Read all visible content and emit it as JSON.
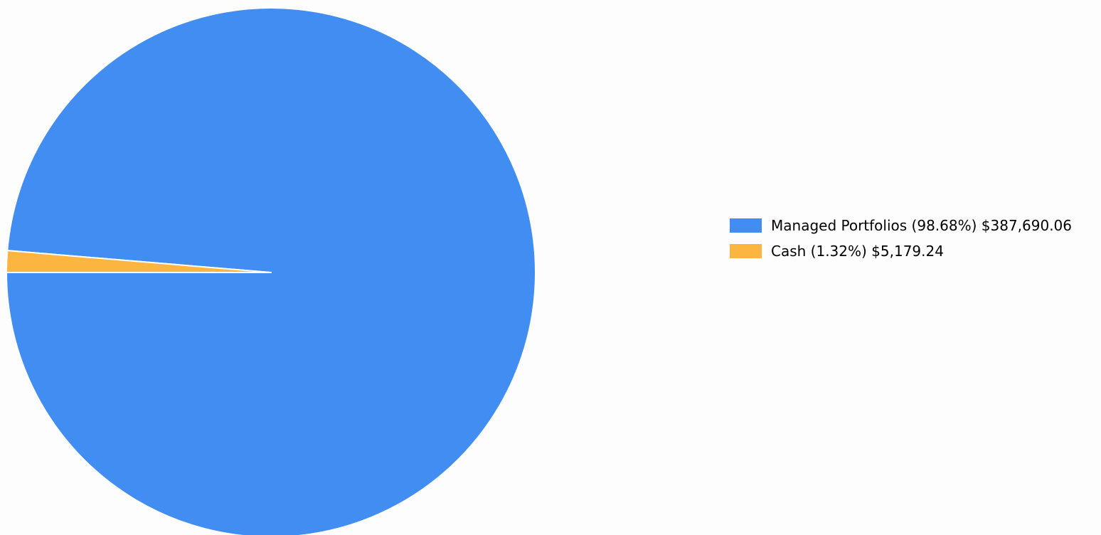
{
  "chart_data": {
    "type": "pie",
    "title": "",
    "slices": [
      {
        "label": "Managed Portfolios",
        "percent": 98.68,
        "value": 387690.06,
        "legend_text": "Managed Portfolios (98.68%) $387,690.06",
        "color": "#428df2"
      },
      {
        "label": "Cash",
        "percent": 1.32,
        "value": 5179.24,
        "legend_text": "Cash (1.32%) $5,179.24",
        "color": "#fbb540"
      }
    ],
    "legend_position": "right",
    "start_angle_deg": 180,
    "direction": "counterclockwise",
    "slice_border_color": "#ffffff"
  }
}
